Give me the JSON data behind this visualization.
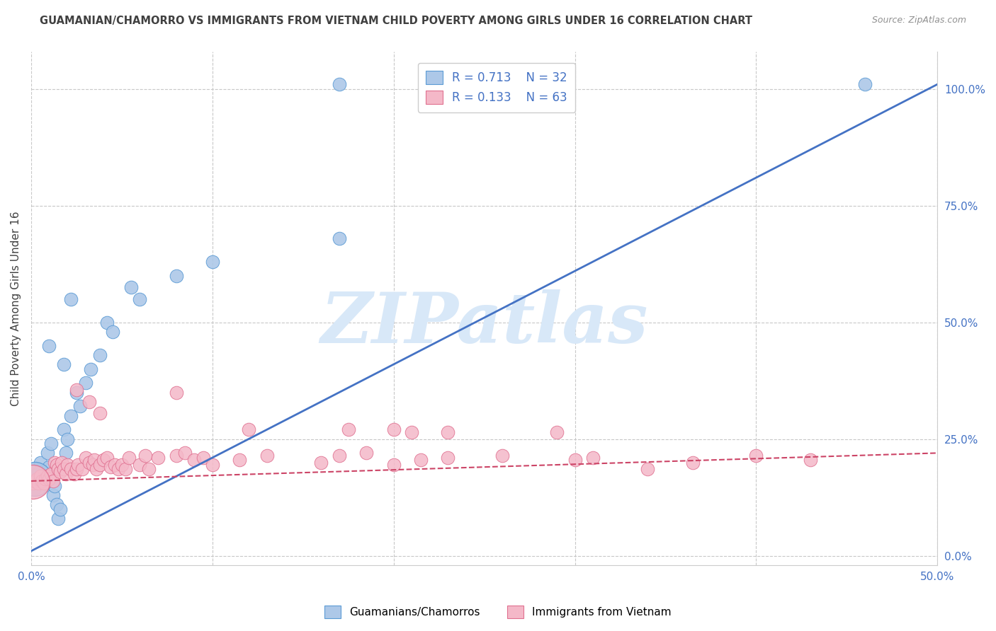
{
  "title": "GUAMANIAN/CHAMORRO VS IMMIGRANTS FROM VIETNAM CHILD POVERTY AMONG GIRLS UNDER 16 CORRELATION CHART",
  "source": "Source: ZipAtlas.com",
  "ylabel": "Child Poverty Among Girls Under 16",
  "xlim": [
    0.0,
    0.5
  ],
  "ylim": [
    -0.02,
    1.08
  ],
  "xticks": [
    0.0,
    0.1,
    0.2,
    0.3,
    0.4,
    0.5
  ],
  "xtick_labels": [
    "0.0%",
    "",
    "",
    "",
    "",
    "50.0%"
  ],
  "ytick_positions_right": [
    0.0,
    0.25,
    0.5,
    0.75,
    1.0
  ],
  "ytick_labels_right": [
    "0.0%",
    "25.0%",
    "50.0%",
    "75.0%",
    "100.0%"
  ],
  "watermark_text": "ZIPatlas",
  "legend_r1": "R = 0.713",
  "legend_n1": "N = 32",
  "legend_r2": "R = 0.133",
  "legend_n2": "N = 63",
  "color_blue_fill": "#adc8e8",
  "color_blue_edge": "#5b9bd5",
  "color_pink_fill": "#f4b8c8",
  "color_pink_edge": "#e07090",
  "color_blue_line": "#4472c4",
  "color_pink_line": "#cc4466",
  "color_blue_text": "#4472c4",
  "color_title": "#404040",
  "color_source": "#909090",
  "color_grid": "#c8c8c8",
  "color_watermark": "#d8e8f8",
  "blue_line_x": [
    0.0,
    0.5
  ],
  "blue_line_y": [
    0.01,
    1.01
  ],
  "pink_line_x": [
    0.0,
    0.5
  ],
  "pink_line_y": [
    0.16,
    0.22
  ],
  "blue_pts": [
    [
      0.001,
      0.155
    ],
    [
      0.002,
      0.145
    ],
    [
      0.003,
      0.175
    ],
    [
      0.004,
      0.16
    ],
    [
      0.005,
      0.2
    ],
    [
      0.006,
      0.18
    ],
    [
      0.007,
      0.155
    ],
    [
      0.008,
      0.17
    ],
    [
      0.009,
      0.22
    ],
    [
      0.01,
      0.19
    ],
    [
      0.011,
      0.24
    ],
    [
      0.012,
      0.13
    ],
    [
      0.013,
      0.15
    ],
    [
      0.014,
      0.11
    ],
    [
      0.015,
      0.08
    ],
    [
      0.016,
      0.1
    ],
    [
      0.018,
      0.27
    ],
    [
      0.019,
      0.22
    ],
    [
      0.02,
      0.25
    ],
    [
      0.022,
      0.3
    ],
    [
      0.025,
      0.35
    ],
    [
      0.027,
      0.32
    ],
    [
      0.03,
      0.37
    ],
    [
      0.033,
      0.4
    ],
    [
      0.038,
      0.43
    ],
    [
      0.042,
      0.5
    ],
    [
      0.045,
      0.48
    ],
    [
      0.06,
      0.55
    ],
    [
      0.08,
      0.6
    ],
    [
      0.1,
      0.63
    ],
    [
      0.17,
      0.68
    ],
    [
      0.46,
      1.01
    ]
  ],
  "blue_big_pts": [
    [
      0.002,
      0.165,
      1200
    ]
  ],
  "pink_pts": [
    [
      0.001,
      0.155
    ],
    [
      0.002,
      0.16
    ],
    [
      0.003,
      0.165
    ],
    [
      0.004,
      0.155
    ],
    [
      0.005,
      0.17
    ],
    [
      0.006,
      0.16
    ],
    [
      0.007,
      0.155
    ],
    [
      0.008,
      0.165
    ],
    [
      0.009,
      0.17
    ],
    [
      0.01,
      0.165
    ],
    [
      0.011,
      0.175
    ],
    [
      0.012,
      0.16
    ],
    [
      0.013,
      0.2
    ],
    [
      0.014,
      0.195
    ],
    [
      0.015,
      0.185
    ],
    [
      0.016,
      0.18
    ],
    [
      0.017,
      0.2
    ],
    [
      0.018,
      0.185
    ],
    [
      0.019,
      0.175
    ],
    [
      0.02,
      0.195
    ],
    [
      0.022,
      0.185
    ],
    [
      0.024,
      0.175
    ],
    [
      0.025,
      0.185
    ],
    [
      0.026,
      0.195
    ],
    [
      0.028,
      0.185
    ],
    [
      0.03,
      0.21
    ],
    [
      0.032,
      0.2
    ],
    [
      0.034,
      0.195
    ],
    [
      0.035,
      0.205
    ],
    [
      0.036,
      0.185
    ],
    [
      0.038,
      0.195
    ],
    [
      0.04,
      0.205
    ],
    [
      0.042,
      0.21
    ],
    [
      0.044,
      0.19
    ],
    [
      0.046,
      0.195
    ],
    [
      0.048,
      0.185
    ],
    [
      0.05,
      0.195
    ],
    [
      0.052,
      0.185
    ],
    [
      0.054,
      0.21
    ],
    [
      0.06,
      0.195
    ],
    [
      0.063,
      0.215
    ],
    [
      0.065,
      0.185
    ],
    [
      0.07,
      0.21
    ],
    [
      0.08,
      0.215
    ],
    [
      0.085,
      0.22
    ],
    [
      0.09,
      0.205
    ],
    [
      0.095,
      0.21
    ],
    [
      0.1,
      0.195
    ],
    [
      0.115,
      0.205
    ],
    [
      0.13,
      0.215
    ],
    [
      0.16,
      0.2
    ],
    [
      0.17,
      0.215
    ],
    [
      0.185,
      0.22
    ],
    [
      0.2,
      0.195
    ],
    [
      0.215,
      0.205
    ],
    [
      0.23,
      0.21
    ],
    [
      0.26,
      0.215
    ],
    [
      0.3,
      0.205
    ],
    [
      0.31,
      0.21
    ],
    [
      0.34,
      0.185
    ],
    [
      0.365,
      0.2
    ],
    [
      0.4,
      0.215
    ],
    [
      0.43,
      0.205
    ]
  ],
  "pink_big_pts": [
    [
      0.001,
      0.158,
      1200
    ]
  ],
  "pink_high_pts": [
    [
      0.025,
      0.355
    ],
    [
      0.032,
      0.33
    ],
    [
      0.038,
      0.305
    ],
    [
      0.08,
      0.35
    ],
    [
      0.12,
      0.27
    ],
    [
      0.175,
      0.27
    ],
    [
      0.2,
      0.27
    ],
    [
      0.21,
      0.265
    ],
    [
      0.23,
      0.265
    ],
    [
      0.29,
      0.265
    ]
  ],
  "blue_high_pts": [
    [
      0.022,
      0.55
    ],
    [
      0.055,
      0.575
    ],
    [
      0.01,
      0.45
    ],
    [
      0.018,
      0.41
    ]
  ],
  "special_blue_top": [
    [
      0.17,
      1.01
    ]
  ]
}
